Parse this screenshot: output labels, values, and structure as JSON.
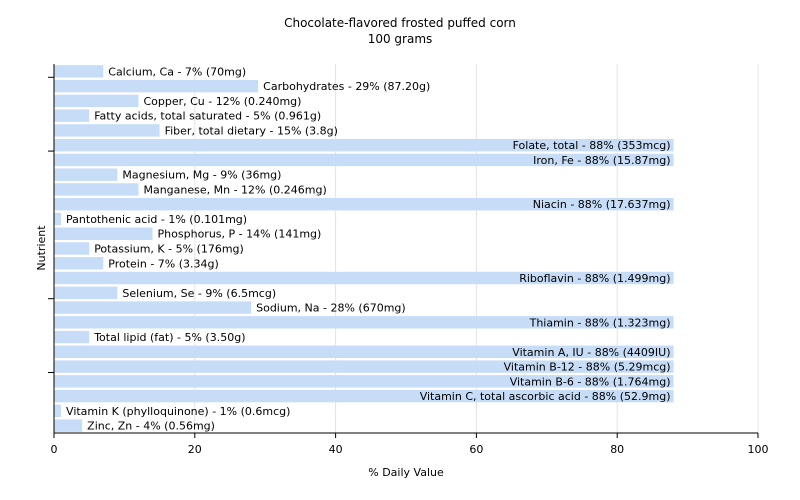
{
  "chart_data": {
    "type": "bar",
    "orientation": "horizontal",
    "title": "Chocolate-flavored frosted puffed corn",
    "subtitle": "100 grams",
    "xlabel": "% Daily Value",
    "ylabel": "Nutrient",
    "xlim": [
      0,
      100
    ],
    "xticks": [
      "0",
      "20",
      "40",
      "60",
      "80",
      "100"
    ],
    "grid": true,
    "bar_color": "#c6dcf7",
    "categories": [
      "Calcium, Ca",
      "Carbohydrates",
      "Copper, Cu",
      "Fatty acids, total saturated",
      "Fiber, total dietary",
      "Folate, total",
      "Iron, Fe",
      "Magnesium, Mg",
      "Manganese, Mn",
      "Niacin",
      "Pantothenic acid",
      "Phosphorus, P",
      "Potassium, K",
      "Protein",
      "Riboflavin",
      "Selenium, Se",
      "Sodium, Na",
      "Thiamin",
      "Total lipid (fat)",
      "Vitamin A, IU",
      "Vitamin B-12",
      "Vitamin B-6",
      "Vitamin C, total ascorbic acid",
      "Vitamin K (phylloquinone)",
      "Zinc, Zn"
    ],
    "values": [
      7,
      29,
      12,
      5,
      15,
      88,
      88,
      9,
      12,
      88,
      1,
      14,
      5,
      7,
      88,
      9,
      28,
      88,
      5,
      88,
      88,
      88,
      88,
      1,
      4
    ],
    "labels": [
      "Calcium, Ca - 7% (70mg)",
      "Carbohydrates - 29% (87.20g)",
      "Copper, Cu - 12% (0.240mg)",
      "Fatty acids, total saturated - 5% (0.961g)",
      "Fiber, total dietary - 15% (3.8g)",
      "Folate, total - 88% (353mcg)",
      "Iron, Fe - 88% (15.87mg)",
      "Magnesium, Mg - 9% (36mg)",
      "Manganese, Mn - 12% (0.246mg)",
      "Niacin - 88% (17.637mg)",
      "Pantothenic acid - 1% (0.101mg)",
      "Phosphorus, P - 14% (141mg)",
      "Potassium, K - 5% (176mg)",
      "Protein - 7% (3.34g)",
      "Riboflavin - 88% (1.499mg)",
      "Selenium, Se - 9% (6.5mcg)",
      "Sodium, Na - 28% (670mg)",
      "Thiamin - 88% (1.323mg)",
      "Total lipid (fat) - 5% (3.50g)",
      "Vitamin A, IU - 88% (4409IU)",
      "Vitamin B-12 - 88% (5.29mcg)",
      "Vitamin B-6 - 88% (1.764mg)",
      "Vitamin C, total ascorbic acid - 88% (52.9mg)",
      "Vitamin K (phylloquinone) - 1% (0.6mcg)",
      "Zinc, Zn - 4% (0.56mg)"
    ]
  }
}
